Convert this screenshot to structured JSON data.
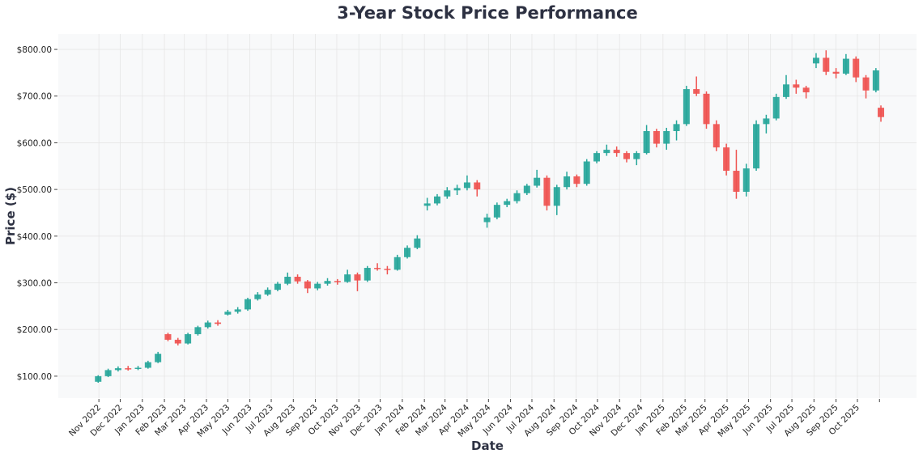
{
  "chart_data": {
    "type": "candlestick",
    "title": "3-Year Stock Price Performance",
    "xlabel": "Date",
    "ylabel": "Price ($)",
    "xlim": [
      "2022-09-05",
      "2025-12-23"
    ],
    "ylim": [
      53,
      833
    ],
    "grid": true,
    "colors": {
      "up": "#26a69a",
      "down": "#ef5350",
      "plot_background": "#f8f9fa",
      "grid": "#e6e6e6",
      "text": "#2d3142"
    },
    "y_ticks": [
      {
        "value": 100,
        "label": "$100.00"
      },
      {
        "value": 200,
        "label": "$200.00"
      },
      {
        "value": 300,
        "label": "$300.00"
      },
      {
        "value": 400,
        "label": "$400.00"
      },
      {
        "value": 500,
        "label": "$500.00"
      },
      {
        "value": 600,
        "label": "$600.00"
      },
      {
        "value": 700,
        "label": "$700.00"
      },
      {
        "value": 800,
        "label": "$800.00"
      }
    ],
    "x_ticks": [
      {
        "date": "2022-11-01",
        "label": "Nov 2022"
      },
      {
        "date": "2022-12-01",
        "label": "Dec 2022"
      },
      {
        "date": "2023-01-01",
        "label": "Jan 2023"
      },
      {
        "date": "2023-02-01",
        "label": "Feb 2023"
      },
      {
        "date": "2023-03-01",
        "label": "Mar 2023"
      },
      {
        "date": "2023-04-01",
        "label": "Apr 2023"
      },
      {
        "date": "2023-05-01",
        "label": "May 2023"
      },
      {
        "date": "2023-06-01",
        "label": "Jun 2023"
      },
      {
        "date": "2023-07-01",
        "label": "Jul 2023"
      },
      {
        "date": "2023-08-01",
        "label": "Aug 2023"
      },
      {
        "date": "2023-09-01",
        "label": "Sep 2023"
      },
      {
        "date": "2023-10-01",
        "label": "Oct 2023"
      },
      {
        "date": "2023-11-01",
        "label": "Nov 2023"
      },
      {
        "date": "2023-12-01",
        "label": "Dec 2023"
      },
      {
        "date": "2024-01-01",
        "label": "Jan 2024"
      },
      {
        "date": "2024-02-01",
        "label": "Feb 2024"
      },
      {
        "date": "2024-03-01",
        "label": "Mar 2024"
      },
      {
        "date": "2024-04-01",
        "label": "Apr 2024"
      },
      {
        "date": "2024-05-01",
        "label": "May 2024"
      },
      {
        "date": "2024-06-01",
        "label": "Jun 2024"
      },
      {
        "date": "2024-07-01",
        "label": "Jul 2024"
      },
      {
        "date": "2024-08-01",
        "label": "Aug 2024"
      },
      {
        "date": "2024-09-01",
        "label": "Sep 2024"
      },
      {
        "date": "2024-10-01",
        "label": "Oct 2024"
      },
      {
        "date": "2024-11-01",
        "label": "Nov 2024"
      },
      {
        "date": "2024-12-01",
        "label": "Dec 2024"
      },
      {
        "date": "2025-01-01",
        "label": "Jan 2025"
      },
      {
        "date": "2025-02-01",
        "label": "Feb 2025"
      },
      {
        "date": "2025-03-01",
        "label": "Mar 2025"
      },
      {
        "date": "2025-04-01",
        "label": "Apr 2025"
      },
      {
        "date": "2025-05-01",
        "label": "May 2025"
      },
      {
        "date": "2025-06-01",
        "label": "Jun 2025"
      },
      {
        "date": "2025-07-01",
        "label": "Jul 2025"
      },
      {
        "date": "2025-08-01",
        "label": "Aug 2025"
      },
      {
        "date": "2025-09-01",
        "label": "Sep 2025"
      },
      {
        "date": "2025-10-01",
        "label": "Oct 2025"
      },
      {
        "date": "2025-11-01",
        "label": ""
      }
    ],
    "candle_fields": [
      "date",
      "open",
      "high",
      "low",
      "close"
    ],
    "candles": [
      [
        "2022-10-31",
        88,
        102,
        86,
        100
      ],
      [
        "2022-11-14",
        100,
        116,
        98,
        113
      ],
      [
        "2022-11-28",
        113,
        121,
        110,
        117
      ],
      [
        "2022-12-12",
        117,
        122,
        112,
        116
      ],
      [
        "2022-12-26",
        116,
        122,
        113,
        118
      ],
      [
        "2023-01-09",
        118,
        133,
        116,
        130
      ],
      [
        "2023-01-23",
        130,
        152,
        128,
        148
      ],
      [
        "2023-02-06",
        190,
        193,
        175,
        178
      ],
      [
        "2023-02-20",
        178,
        182,
        166,
        170
      ],
      [
        "2023-03-06",
        170,
        193,
        168,
        190
      ],
      [
        "2023-03-20",
        190,
        208,
        187,
        205
      ],
      [
        "2023-04-03",
        205,
        219,
        202,
        215
      ],
      [
        "2023-04-17",
        215,
        220,
        208,
        212
      ],
      [
        "2023-05-01",
        232,
        242,
        230,
        238
      ],
      [
        "2023-05-15",
        238,
        248,
        234,
        243
      ],
      [
        "2023-05-29",
        243,
        268,
        240,
        265
      ],
      [
        "2023-06-12",
        265,
        280,
        262,
        275
      ],
      [
        "2023-06-26",
        275,
        290,
        272,
        285
      ],
      [
        "2023-07-10",
        285,
        302,
        282,
        298
      ],
      [
        "2023-07-24",
        298,
        322,
        295,
        313
      ],
      [
        "2023-08-07",
        313,
        318,
        298,
        303
      ],
      [
        "2023-08-21",
        303,
        306,
        278,
        288
      ],
      [
        "2023-09-04",
        288,
        302,
        284,
        298
      ],
      [
        "2023-09-18",
        298,
        310,
        294,
        304
      ],
      [
        "2023-10-02",
        304,
        308,
        296,
        302
      ],
      [
        "2023-10-16",
        302,
        328,
        300,
        318
      ],
      [
        "2023-10-30",
        318,
        322,
        282,
        305
      ],
      [
        "2023-11-13",
        305,
        336,
        302,
        332
      ],
      [
        "2023-11-27",
        332,
        342,
        326,
        330
      ],
      [
        "2023-12-11",
        330,
        336,
        318,
        328
      ],
      [
        "2023-12-25",
        328,
        360,
        326,
        355
      ],
      [
        "2024-01-08",
        355,
        380,
        352,
        375
      ],
      [
        "2024-01-22",
        375,
        402,
        372,
        395
      ],
      [
        "2024-02-05",
        465,
        482,
        455,
        470
      ],
      [
        "2024-02-19",
        470,
        490,
        466,
        485
      ],
      [
        "2024-03-04",
        485,
        505,
        480,
        498
      ],
      [
        "2024-03-18",
        498,
        510,
        488,
        503
      ],
      [
        "2024-04-01",
        503,
        530,
        498,
        515
      ],
      [
        "2024-04-15",
        515,
        520,
        485,
        500
      ],
      [
        "2024-04-29",
        430,
        448,
        418,
        440
      ],
      [
        "2024-05-13",
        440,
        472,
        436,
        467
      ],
      [
        "2024-05-27",
        467,
        480,
        462,
        475
      ],
      [
        "2024-06-10",
        475,
        498,
        470,
        492
      ],
      [
        "2024-06-24",
        492,
        512,
        488,
        508
      ],
      [
        "2024-07-08",
        508,
        542,
        504,
        525
      ],
      [
        "2024-07-22",
        525,
        530,
        455,
        465
      ],
      [
        "2024-08-05",
        465,
        510,
        445,
        505
      ],
      [
        "2024-08-19",
        505,
        538,
        500,
        528
      ],
      [
        "2024-09-02",
        528,
        532,
        505,
        512
      ],
      [
        "2024-09-16",
        512,
        565,
        508,
        560
      ],
      [
        "2024-09-30",
        560,
        582,
        556,
        578
      ],
      [
        "2024-10-14",
        578,
        596,
        572,
        585
      ],
      [
        "2024-10-28",
        585,
        592,
        570,
        578
      ],
      [
        "2024-11-11",
        578,
        582,
        558,
        565
      ],
      [
        "2024-11-25",
        565,
        582,
        552,
        578
      ],
      [
        "2024-12-09",
        578,
        638,
        575,
        625
      ],
      [
        "2024-12-23",
        625,
        630,
        590,
        598
      ],
      [
        "2025-01-06",
        598,
        632,
        585,
        625
      ],
      [
        "2025-01-20",
        625,
        648,
        605,
        640
      ],
      [
        "2025-02-03",
        640,
        722,
        636,
        715
      ],
      [
        "2025-02-17",
        715,
        742,
        700,
        705
      ],
      [
        "2025-03-03",
        705,
        710,
        630,
        640
      ],
      [
        "2025-03-17",
        640,
        648,
        582,
        590
      ],
      [
        "2025-03-31",
        590,
        598,
        530,
        540
      ],
      [
        "2025-04-14",
        540,
        585,
        480,
        495
      ],
      [
        "2025-04-28",
        495,
        555,
        485,
        545
      ],
      [
        "2025-05-12",
        545,
        648,
        540,
        640
      ],
      [
        "2025-05-26",
        640,
        660,
        620,
        652
      ],
      [
        "2025-06-09",
        652,
        705,
        648,
        698
      ],
      [
        "2025-06-23",
        698,
        745,
        694,
        725
      ],
      [
        "2025-07-07",
        725,
        735,
        705,
        718
      ],
      [
        "2025-07-21",
        718,
        722,
        695,
        708
      ],
      [
        "2025-08-04",
        770,
        792,
        760,
        782
      ],
      [
        "2025-08-18",
        782,
        798,
        745,
        752
      ],
      [
        "2025-09-01",
        752,
        760,
        738,
        748
      ],
      [
        "2025-09-15",
        748,
        790,
        745,
        780
      ],
      [
        "2025-09-29",
        780,
        785,
        730,
        740
      ],
      [
        "2025-10-13",
        740,
        745,
        695,
        712
      ],
      [
        "2025-10-27",
        712,
        760,
        708,
        755
      ],
      [
        "2025-11-03",
        675,
        680,
        645,
        655
      ]
    ]
  }
}
